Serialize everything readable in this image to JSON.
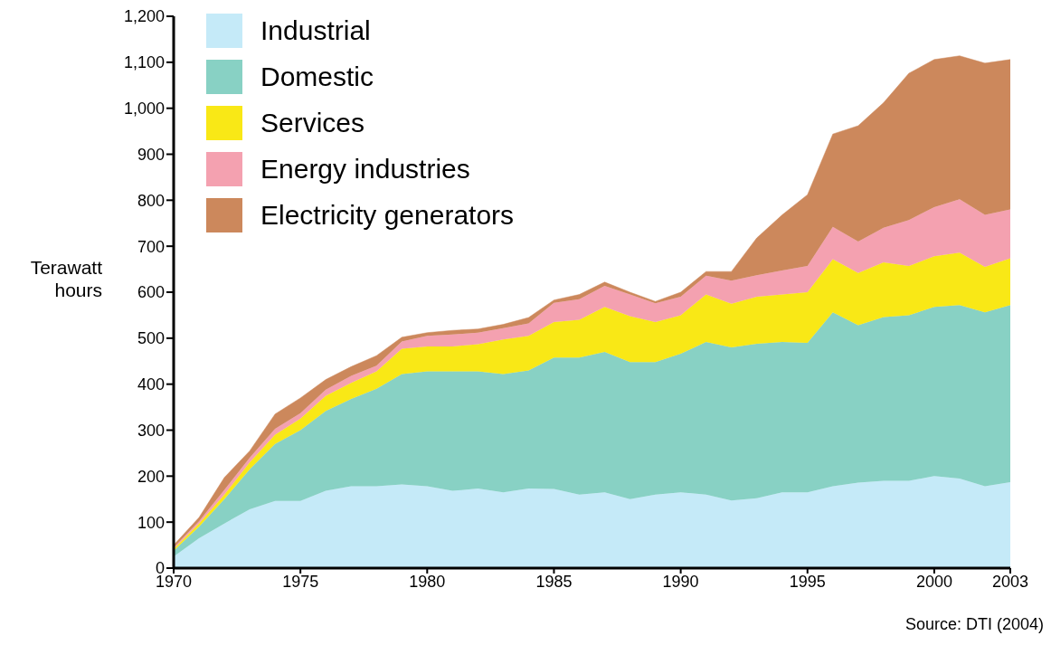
{
  "chart_data": {
    "type": "area",
    "stacked": true,
    "ylabel": "Terawatt hours",
    "x": [
      1970,
      1971,
      1972,
      1973,
      1974,
      1975,
      1976,
      1977,
      1978,
      1979,
      1980,
      1981,
      1982,
      1983,
      1984,
      1985,
      1986,
      1987,
      1988,
      1989,
      1990,
      1991,
      1992,
      1993,
      1994,
      1995,
      1996,
      1997,
      1998,
      1999,
      2000,
      2001,
      2002,
      2003
    ],
    "series": [
      {
        "name": "Industrial",
        "color": "#c5eaf8",
        "values": [
          25,
          65,
          97,
          128,
          146,
          146,
          168,
          178,
          178,
          182,
          178,
          168,
          173,
          165,
          173,
          172,
          160,
          165,
          150,
          160,
          165,
          160,
          147,
          152,
          165,
          165,
          178,
          186,
          190,
          190,
          200,
          195,
          178,
          187
        ]
      },
      {
        "name": "Domestic",
        "color": "#88d1c4",
        "values": [
          13,
          25,
          53,
          87,
          124,
          154,
          174,
          190,
          212,
          240,
          250,
          260,
          255,
          257,
          257,
          286,
          298,
          305,
          298,
          288,
          301,
          332,
          333,
          336,
          327,
          325,
          378,
          342,
          356,
          360,
          368,
          377,
          378,
          385
        ]
      },
      {
        "name": "Services",
        "color": "#f9e816",
        "values": [
          4,
          7,
          10,
          15,
          20,
          25,
          33,
          35,
          38,
          55,
          54,
          54,
          59,
          75,
          75,
          77,
          82,
          98,
          100,
          87,
          84,
          103,
          95,
          102,
          103,
          110,
          116,
          114,
          119,
          107,
          110,
          114,
          99,
          102
        ]
      },
      {
        "name": "Energy industries",
        "color": "#f4a1b0",
        "values": [
          3,
          5,
          10,
          10,
          13,
          12,
          13,
          15,
          12,
          16,
          23,
          26,
          25,
          25,
          27,
          42,
          45,
          46,
          47,
          41,
          40,
          41,
          50,
          47,
          52,
          57,
          70,
          68,
          75,
          100,
          107,
          116,
          113,
          106
        ]
      },
      {
        "name": "Electricity generators",
        "color": "#cc885c",
        "values": [
          5,
          8,
          27,
          15,
          32,
          33,
          22,
          20,
          22,
          9,
          7,
          9,
          8,
          8,
          13,
          6,
          10,
          8,
          5,
          4,
          10,
          9,
          20,
          81,
          121,
          155,
          202,
          252,
          272,
          319,
          321,
          312,
          330,
          326
        ]
      }
    ],
    "xlim": [
      1970,
      2003
    ],
    "xticks": [
      1970,
      1975,
      1980,
      1985,
      1990,
      1995,
      2000,
      2003
    ],
    "ylim": [
      0,
      1200
    ],
    "yticks": [
      0,
      100,
      200,
      300,
      400,
      500,
      600,
      700,
      800,
      900,
      {
        "value": 1000,
        "label": "1,000"
      },
      {
        "value": 1100,
        "label": "1,100"
      },
      {
        "value": 1200,
        "label": "1,200"
      }
    ],
    "grid": false,
    "legend": "top left",
    "annotations": [
      "Source: DTI (2004)"
    ]
  }
}
